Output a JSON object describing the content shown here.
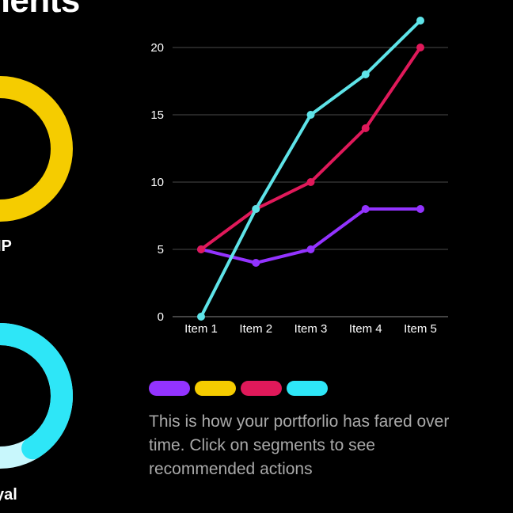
{
  "page": {
    "title": "nents"
  },
  "donuts": [
    {
      "label": "IP",
      "segments": [
        {
          "value": 1.0,
          "color": "#f5cc00"
        }
      ]
    },
    {
      "label": "yal",
      "segments": [
        {
          "value": 0.62,
          "color": "#2ee6f7"
        },
        {
          "value": 0.38,
          "color": "#c8f7fc"
        }
      ]
    }
  ],
  "chart_data": {
    "type": "line",
    "categories": [
      "Item 1",
      "Item 2",
      "Item 3",
      "Item 4",
      "Item 5"
    ],
    "ylim": [
      0,
      20
    ],
    "yticks": [
      0,
      5,
      10,
      15,
      20
    ],
    "grid": true,
    "xlabel": "",
    "ylabel": "",
    "series": [
      {
        "values": [
          5,
          4,
          5,
          8,
          8
        ],
        "color": "#9333ff"
      },
      {
        "values": [
          5,
          8,
          10,
          14,
          20
        ],
        "color": "#e0195a"
      },
      {
        "values": [
          0,
          8,
          15,
          18,
          22
        ],
        "color": "#5ee3e8"
      }
    ]
  },
  "legend": [
    {
      "color": "#9333ff"
    },
    {
      "color": "#f5cc00"
    },
    {
      "color": "#e0195a"
    },
    {
      "color": "#2ee6f7"
    }
  ],
  "description": "This is how your portforlio has fared over time. Click on segments to see recommended actions"
}
